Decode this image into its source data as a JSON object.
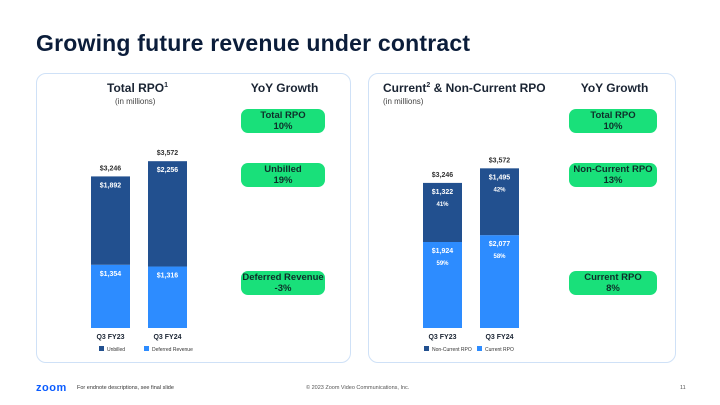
{
  "page": {
    "title": "Growing future revenue under contract",
    "footer_logo": "zoom",
    "footer_note": "For endnote descriptions, see final slide",
    "copyright": "© 2023 Zoom Video Communications, Inc.",
    "page_number": "11"
  },
  "colors": {
    "dark_blue": "#22508f",
    "light_blue": "#2d8cff",
    "green": "#19e07a"
  },
  "left_panel": {
    "title": "Total RPO",
    "superscript": "1",
    "subtitle": "(in millions)",
    "yoy_heading": "YoY Growth",
    "yoy": [
      {
        "label": "Total RPO",
        "value": "10%"
      },
      {
        "label": "Unbilled",
        "value": "19%"
      },
      {
        "label": "Deferred Revenue",
        "value": "-3%"
      }
    ]
  },
  "right_panel": {
    "title": "Current",
    "superscript": "2",
    "title_rest": " & Non-Current RPO",
    "subtitle": "(in millions)",
    "yoy_heading": "YoY Growth",
    "yoy": [
      {
        "label": "Total RPO",
        "value": "10%"
      },
      {
        "label": "Non-Current RPO",
        "value": "13%"
      },
      {
        "label": "Current RPO",
        "value": "8%"
      }
    ]
  },
  "chart_data": [
    {
      "type": "bar",
      "stacked": true,
      "categories": [
        "Q3 FY23",
        "Q3 FY24"
      ],
      "totals": [
        "$3,246",
        "$3,572"
      ],
      "series": [
        {
          "name": "Deferred Revenue",
          "values": [
            1354,
            1316
          ],
          "labels": [
            "$1,354",
            "$1,316"
          ],
          "color": "#2d8cff"
        },
        {
          "name": "Unbilled",
          "values": [
            1892,
            2256
          ],
          "labels": [
            "$1,892",
            "$2,256"
          ],
          "color": "#22508f"
        }
      ],
      "legend": [
        "Unbilled",
        "Deferred Revenue"
      ],
      "legend_position": "bottom"
    },
    {
      "type": "bar",
      "stacked": true,
      "categories": [
        "Q3 FY23",
        "Q3 FY24"
      ],
      "totals": [
        "$3,246",
        "$3,572"
      ],
      "series": [
        {
          "name": "Current RPO",
          "values": [
            1924,
            2077
          ],
          "labels": [
            "$1,924",
            "$2,077"
          ],
          "percents": [
            "59%",
            "58%"
          ],
          "color": "#2d8cff"
        },
        {
          "name": "Non-Current RPO",
          "values": [
            1322,
            1495
          ],
          "labels": [
            "$1,322",
            "$1,495"
          ],
          "percents": [
            "41%",
            "42%"
          ],
          "color": "#22508f"
        }
      ],
      "legend": [
        "Non-Current RPO",
        "Current RPO"
      ],
      "legend_position": "bottom"
    }
  ]
}
